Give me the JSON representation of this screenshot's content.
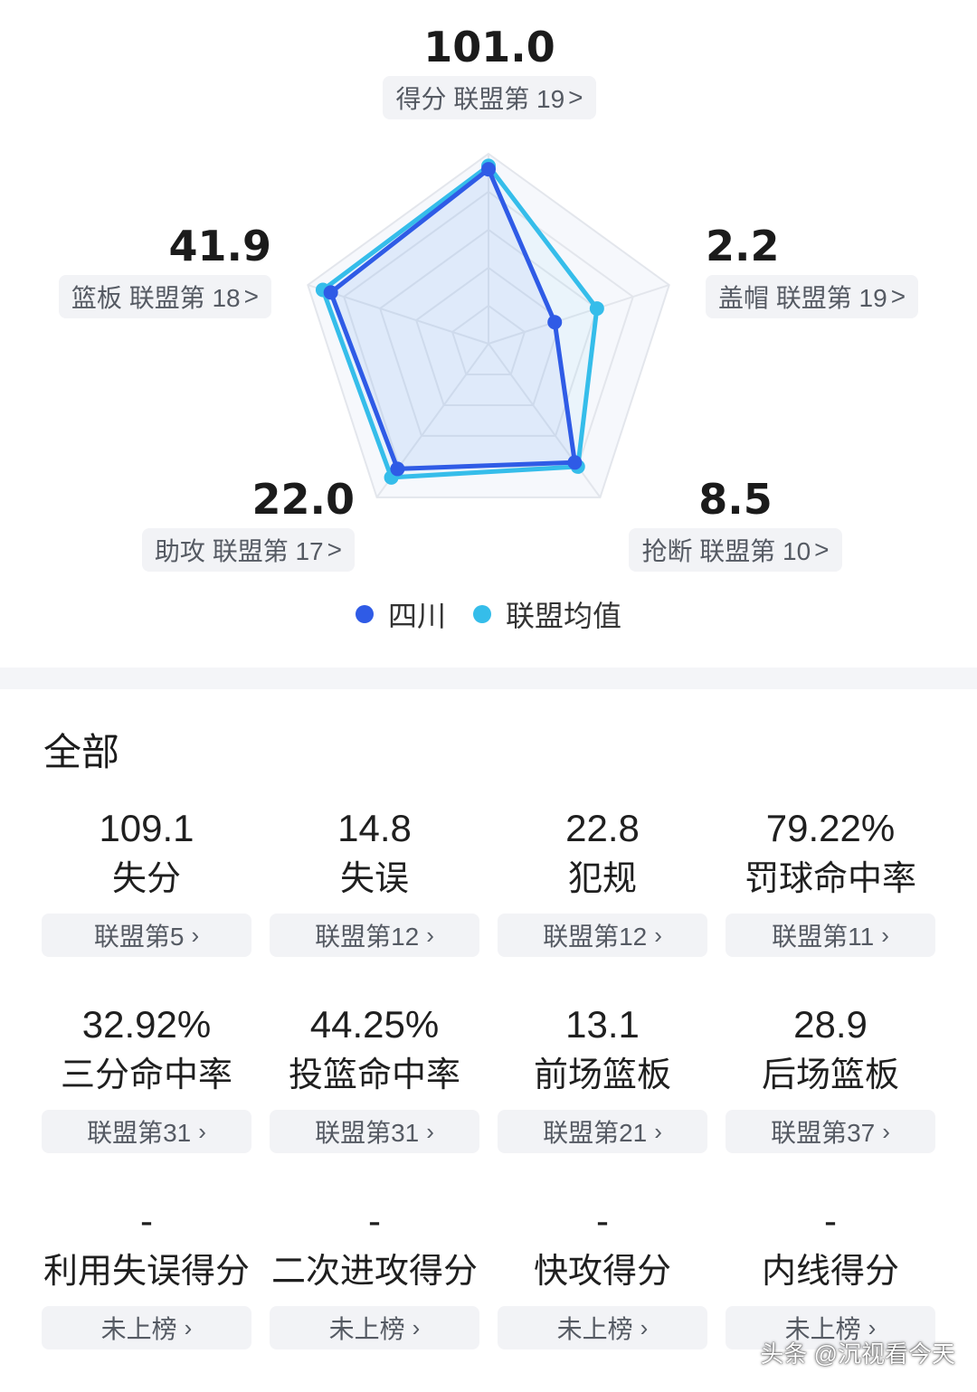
{
  "radar": {
    "axes": [
      {
        "key": "points",
        "value": "101.0",
        "label": "得分 联盟第 19",
        "team": 101.0,
        "league": 103.0
      },
      {
        "key": "blocks",
        "value": "2.2",
        "label": "盖帽 联盟第 19",
        "team": 2.2,
        "league": 3.6
      },
      {
        "key": "steals",
        "value": "8.5",
        "label": "抢断 联盟第 10",
        "team": 8.5,
        "league": 8.8
      },
      {
        "key": "assists",
        "value": "22.0",
        "label": "助攻 联盟第 17",
        "team": 22.0,
        "league": 23.5
      },
      {
        "key": "rebounds",
        "value": "41.9",
        "label": "篮板 联盟第 18",
        "team": 41.9,
        "league": 44.0
      }
    ],
    "arrow": ">",
    "legend": [
      {
        "name": "四川",
        "color": "#2f5be6"
      },
      {
        "name": "联盟均值",
        "color": "#35bdea"
      }
    ]
  },
  "stats": {
    "title": "全部",
    "arrow": "›",
    "items": [
      {
        "value": "109.1",
        "label": "失分",
        "rank": "联盟第5"
      },
      {
        "value": "14.8",
        "label": "失误",
        "rank": "联盟第12"
      },
      {
        "value": "22.8",
        "label": "犯规",
        "rank": "联盟第12"
      },
      {
        "value": "79.22%",
        "label": "罚球命中率",
        "rank": "联盟第11"
      },
      {
        "value": "32.92%",
        "label": "三分命中率",
        "rank": "联盟第31"
      },
      {
        "value": "44.25%",
        "label": "投篮命中率",
        "rank": "联盟第31"
      },
      {
        "value": "13.1",
        "label": "前场篮板",
        "rank": "联盟第21"
      },
      {
        "value": "28.9",
        "label": "后场篮板",
        "rank": "联盟第37"
      },
      {
        "value": "-",
        "label": "利用失误得分",
        "rank": "未上榜"
      },
      {
        "value": "-",
        "label": "二次进攻得分",
        "rank": "未上榜"
      },
      {
        "value": "-",
        "label": "快攻得分",
        "rank": "未上榜"
      },
      {
        "value": "-",
        "label": "内线得分",
        "rank": "未上榜"
      }
    ]
  },
  "watermark": "头条 @沉视看今天"
}
